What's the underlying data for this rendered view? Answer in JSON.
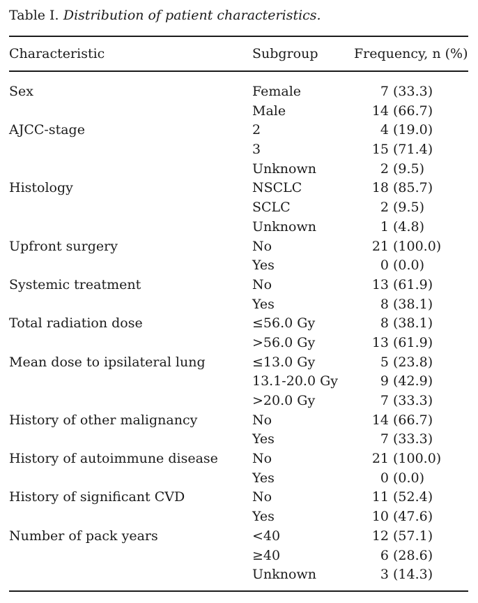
{
  "colors": {
    "text": "#1b1b1b",
    "rule": "#1b1b1b",
    "background": "#ffffff"
  },
  "title": {
    "label": "Table I.",
    "caption": "Distribution of patient characteristics."
  },
  "table": {
    "headers": [
      "Characteristic",
      "Subgroup",
      "Frequency, n (%)"
    ],
    "groups": [
      {
        "characteristic": "Sex",
        "rows": [
          {
            "subgroup": "Female",
            "n": "7",
            "pct": "(33.3)"
          },
          {
            "subgroup": "Male",
            "n": "14",
            "pct": "(66.7)"
          }
        ]
      },
      {
        "characteristic": "AJCC-stage",
        "rows": [
          {
            "subgroup": "2",
            "n": "4",
            "pct": "(19.0)"
          },
          {
            "subgroup": "3",
            "n": "15",
            "pct": "(71.4)"
          },
          {
            "subgroup": "Unknown",
            "n": "2",
            "pct": "(9.5)"
          }
        ]
      },
      {
        "characteristic": "Histology",
        "rows": [
          {
            "subgroup": "NSCLC",
            "n": "18",
            "pct": "(85.7)"
          },
          {
            "subgroup": "SCLC",
            "n": "2",
            "pct": "(9.5)"
          },
          {
            "subgroup": "Unknown",
            "n": "1",
            "pct": "(4.8)"
          }
        ]
      },
      {
        "characteristic": "Upfront surgery",
        "rows": [
          {
            "subgroup": "No",
            "n": "21",
            "pct": "(100.0)"
          },
          {
            "subgroup": "Yes",
            "n": "0",
            "pct": "(0.0)"
          }
        ]
      },
      {
        "characteristic": "Systemic treatment",
        "rows": [
          {
            "subgroup": "No",
            "n": "13",
            "pct": "(61.9)"
          },
          {
            "subgroup": "Yes",
            "n": "8",
            "pct": "(38.1)"
          }
        ]
      },
      {
        "characteristic": "Total radiation dose",
        "rows": [
          {
            "subgroup": "≤56.0 Gy",
            "n": "8",
            "pct": "(38.1)"
          },
          {
            "subgroup": ">56.0 Gy",
            "n": "13",
            "pct": "(61.9)"
          }
        ]
      },
      {
        "characteristic": "Mean dose to ipsilateral lung",
        "rows": [
          {
            "subgroup": "≤13.0 Gy",
            "n": "5",
            "pct": "(23.8)"
          },
          {
            "subgroup": "13.1-20.0 Gy",
            "n": "9",
            "pct": "(42.9)"
          },
          {
            "subgroup": ">20.0 Gy",
            "n": "7",
            "pct": "(33.3)"
          }
        ]
      },
      {
        "characteristic": "History of other malignancy",
        "rows": [
          {
            "subgroup": "No",
            "n": "14",
            "pct": "(66.7)"
          },
          {
            "subgroup": "Yes",
            "n": "7",
            "pct": "(33.3)"
          }
        ]
      },
      {
        "characteristic": "History of autoimmune disease",
        "rows": [
          {
            "subgroup": "No",
            "n": "21",
            "pct": "(100.0)"
          },
          {
            "subgroup": "Yes",
            "n": "0",
            "pct": "(0.0)"
          }
        ]
      },
      {
        "characteristic": "History of significant CVD",
        "rows": [
          {
            "subgroup": "No",
            "n": "11",
            "pct": "(52.4)"
          },
          {
            "subgroup": "Yes",
            "n": "10",
            "pct": "(47.6)"
          }
        ]
      },
      {
        "characteristic": "Number of pack years",
        "rows": [
          {
            "subgroup": "<40",
            "n": "12",
            "pct": "(57.1)"
          },
          {
            "subgroup": "≥40",
            "n": "6",
            "pct": "(28.6)"
          },
          {
            "subgroup": "Unknown",
            "n": "3",
            "pct": "(14.3)"
          }
        ]
      }
    ]
  }
}
